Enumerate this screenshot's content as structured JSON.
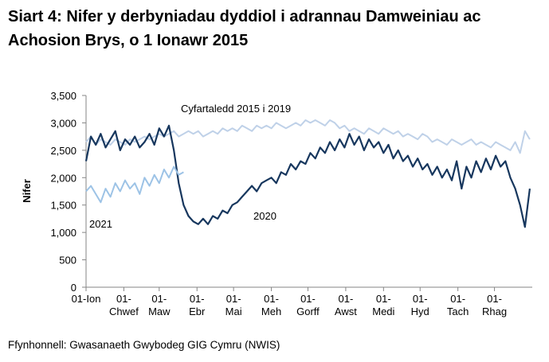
{
  "chart_data": {
    "type": "line",
    "title": "Siart 4: Nifer y derbyniadau dyddiol i adrannau Damweiniau ac Achosion Brys, o 1 Ionawr 2015",
    "ylabel": "Nifer",
    "source": "Ffynhonnell: Gwasanaeth Gwybodeg GIG Cymru (NWIS)",
    "xlim": [
      0,
      366
    ],
    "xticks": [
      {
        "value": 0,
        "label": "01-Ion"
      },
      {
        "value": 31,
        "label": "01-Chwef"
      },
      {
        "value": 60,
        "label": "01-Maw"
      },
      {
        "value": 91,
        "label": "01-Ebr"
      },
      {
        "value": 121,
        "label": "01-Mai"
      },
      {
        "value": 152,
        "label": "01-Meh"
      },
      {
        "value": 182,
        "label": "01-Gorff"
      },
      {
        "value": 213,
        "label": "01-Awst"
      },
      {
        "value": 244,
        "label": "01-Medi"
      },
      {
        "value": 274,
        "label": "01-Hyd"
      },
      {
        "value": 305,
        "label": "01-Tach"
      },
      {
        "value": 335,
        "label": "01-Rhag"
      }
    ],
    "ylim": [
      0,
      3500
    ],
    "yticks": [
      0,
      {
        "value": 500,
        "label": "500"
      },
      {
        "value": 1000,
        "label": "1,000"
      },
      {
        "value": 1500,
        "label": "1,500"
      },
      {
        "value": 2000,
        "label": "2,000"
      },
      {
        "value": 2500,
        "label": "2,500"
      },
      {
        "value": 3000,
        "label": "3,000"
      },
      {
        "value": 3500,
        "label": "3,500"
      }
    ],
    "grid": false,
    "x": [
      0,
      4,
      8,
      12,
      16,
      20,
      24,
      28,
      32,
      36,
      40,
      44,
      48,
      52,
      56,
      60,
      64,
      68,
      72,
      76,
      80,
      84,
      88,
      92,
      96,
      100,
      104,
      108,
      112,
      116,
      120,
      124,
      128,
      132,
      136,
      140,
      144,
      148,
      152,
      156,
      160,
      164,
      168,
      172,
      176,
      180,
      184,
      188,
      192,
      196,
      200,
      204,
      208,
      212,
      216,
      220,
      224,
      228,
      232,
      236,
      240,
      244,
      248,
      252,
      256,
      260,
      264,
      268,
      272,
      276,
      280,
      284,
      288,
      292,
      296,
      300,
      304,
      308,
      312,
      316,
      320,
      324,
      328,
      332,
      336,
      340,
      344,
      348,
      352,
      356,
      360,
      364
    ],
    "series": [
      {
        "name": "Cyfartaledd 2015 i 2019",
        "color": "#bfd1e8",
        "values": [
          2650,
          2750,
          2600,
          2700,
          2650,
          2600,
          2700,
          2650,
          2600,
          2700,
          2650,
          2700,
          2750,
          2700,
          2750,
          2800,
          2750,
          2800,
          2850,
          2750,
          2800,
          2850,
          2800,
          2850,
          2750,
          2800,
          2850,
          2800,
          2900,
          2850,
          2900,
          2850,
          2950,
          2900,
          2850,
          2950,
          2900,
          2950,
          2900,
          3000,
          2950,
          2900,
          2950,
          3000,
          2950,
          3050,
          3000,
          3050,
          3000,
          2950,
          3050,
          3000,
          2900,
          2950,
          2850,
          2900,
          2850,
          2800,
          2900,
          2850,
          2800,
          2900,
          2850,
          2800,
          2850,
          2750,
          2800,
          2750,
          2700,
          2800,
          2750,
          2650,
          2700,
          2650,
          2600,
          2700,
          2650,
          2600,
          2650,
          2700,
          2600,
          2650,
          2600,
          2550,
          2650,
          2600,
          2550,
          2500,
          2650,
          2450,
          2850,
          2700
        ]
      },
      {
        "name": "2020",
        "color": "#17375e",
        "values": [
          2300,
          2750,
          2600,
          2800,
          2550,
          2700,
          2850,
          2500,
          2700,
          2600,
          2750,
          2550,
          2650,
          2800,
          2600,
          2900,
          2750,
          2950,
          2500,
          1900,
          1500,
          1300,
          1200,
          1150,
          1250,
          1150,
          1300,
          1250,
          1400,
          1350,
          1500,
          1550,
          1650,
          1750,
          1850,
          1750,
          1900,
          1950,
          2000,
          1900,
          2100,
          2050,
          2250,
          2150,
          2300,
          2250,
          2450,
          2350,
          2550,
          2450,
          2650,
          2500,
          2700,
          2550,
          2800,
          2600,
          2750,
          2500,
          2700,
          2550,
          2650,
          2450,
          2600,
          2350,
          2500,
          2300,
          2400,
          2200,
          2350,
          2150,
          2250,
          2050,
          2200,
          2000,
          2150,
          1950,
          2300,
          1800,
          2200,
          2000,
          2300,
          2100,
          2350,
          2150,
          2400,
          2200,
          2300,
          2000,
          1800,
          1500,
          1100,
          1800
        ]
      },
      {
        "name": "2021",
        "color": "#9dc3e6",
        "values": [
          1750,
          1850,
          1700,
          1550,
          1800,
          1650,
          1900,
          1750,
          1950,
          1800,
          1900,
          1700,
          2000,
          1850,
          2050,
          1900,
          2150,
          2000,
          2200,
          2050,
          2100,
          null,
          null,
          null,
          null,
          null,
          null,
          null,
          null,
          null,
          null,
          null,
          null,
          null,
          null,
          null,
          null,
          null,
          null,
          null,
          null,
          null,
          null,
          null,
          null,
          null,
          null,
          null,
          null,
          null,
          null,
          null,
          null,
          null,
          null,
          null,
          null,
          null,
          null,
          null,
          null,
          null,
          null,
          null,
          null,
          null,
          null,
          null,
          null,
          null,
          null,
          null,
          null,
          null,
          null,
          null,
          null,
          null,
          null,
          null,
          null,
          null,
          null,
          null,
          null,
          null,
          null,
          null,
          null,
          null,
          null,
          null
        ]
      }
    ]
  }
}
